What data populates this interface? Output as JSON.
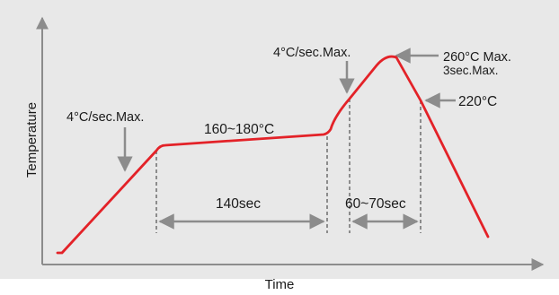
{
  "chart_data": {
    "type": "line",
    "xlabel": "Time",
    "ylabel": "Temperature",
    "grid": false,
    "colors": {
      "background": "#e8e8e8",
      "curve": "#e32228",
      "annotation": "#8c8c8c",
      "axis": "#8c8c8c"
    },
    "annotations": {
      "preheat_ramp": "4°C/sec.Max.",
      "soak": "160~180°C",
      "soak_time": "140sec",
      "reflow_ramp": "4°C/sec.Max.",
      "peak_temp": "260°C Max.",
      "peak_time": "3sec.Max.",
      "liquidus": "220°C",
      "reflow_time": "60~70sec"
    }
  }
}
